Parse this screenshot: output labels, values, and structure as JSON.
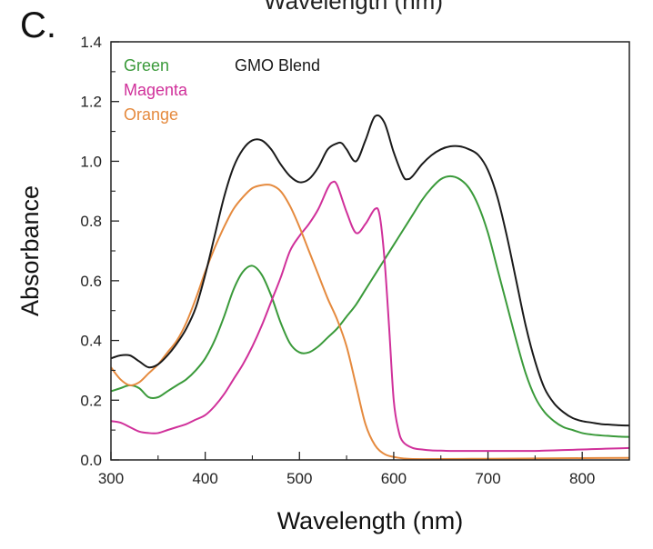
{
  "panel_label": "C.",
  "top_cutoff_text": "Wavelength (nm)",
  "chart_data": {
    "type": "line",
    "xlabel": "Wavelength (nm)",
    "ylabel": "Absorbance",
    "xlim": [
      300,
      850
    ],
    "ylim": [
      0.0,
      1.4
    ],
    "xticks": [
      300,
      400,
      500,
      600,
      700,
      800
    ],
    "xtick_labels": [
      "300",
      "400",
      "500",
      "600",
      "700",
      "800"
    ],
    "yticks": [
      0.0,
      0.2,
      0.4,
      0.6,
      0.8,
      1.0,
      1.2,
      1.4
    ],
    "ytick_labels": [
      "0.0",
      "0.2",
      "0.4",
      "0.6",
      "0.8",
      "1.0",
      "1.2",
      "1.4"
    ],
    "grid": false,
    "legend_position": "top-left",
    "series": [
      {
        "name": "Green",
        "color": "#3a9a3a",
        "x": [
          300,
          310,
          320,
          330,
          340,
          350,
          360,
          370,
          380,
          390,
          400,
          410,
          420,
          430,
          440,
          450,
          460,
          470,
          480,
          490,
          500,
          510,
          520,
          530,
          540,
          550,
          560,
          570,
          580,
          590,
          600,
          610,
          620,
          630,
          640,
          650,
          660,
          670,
          680,
          690,
          700,
          710,
          720,
          730,
          740,
          750,
          760,
          770,
          780,
          790,
          800,
          810,
          820,
          830,
          840,
          850
        ],
        "y": [
          0.23,
          0.24,
          0.25,
          0.24,
          0.21,
          0.21,
          0.23,
          0.25,
          0.27,
          0.3,
          0.34,
          0.4,
          0.48,
          0.57,
          0.63,
          0.65,
          0.62,
          0.55,
          0.46,
          0.39,
          0.36,
          0.36,
          0.38,
          0.41,
          0.44,
          0.48,
          0.52,
          0.57,
          0.62,
          0.67,
          0.72,
          0.77,
          0.82,
          0.87,
          0.91,
          0.94,
          0.95,
          0.94,
          0.91,
          0.85,
          0.76,
          0.64,
          0.52,
          0.4,
          0.29,
          0.21,
          0.16,
          0.13,
          0.11,
          0.1,
          0.09,
          0.085,
          0.082,
          0.08,
          0.078,
          0.077
        ]
      },
      {
        "name": "Magenta",
        "color": "#d0309a",
        "x": [
          300,
          310,
          320,
          330,
          340,
          350,
          360,
          370,
          380,
          390,
          400,
          410,
          420,
          430,
          440,
          450,
          460,
          470,
          480,
          490,
          500,
          510,
          520,
          530,
          535,
          540,
          550,
          560,
          570,
          580,
          585,
          590,
          595,
          600,
          605,
          610,
          620,
          630,
          640,
          650,
          660,
          670,
          680,
          690,
          700,
          710,
          720,
          730,
          740,
          750,
          760,
          770,
          780,
          790,
          800,
          810,
          820,
          830,
          840,
          850
        ],
        "y": [
          0.13,
          0.125,
          0.11,
          0.095,
          0.09,
          0.09,
          0.1,
          0.11,
          0.12,
          0.135,
          0.15,
          0.18,
          0.22,
          0.27,
          0.32,
          0.38,
          0.45,
          0.53,
          0.61,
          0.7,
          0.75,
          0.79,
          0.84,
          0.91,
          0.93,
          0.92,
          0.83,
          0.76,
          0.79,
          0.84,
          0.82,
          0.68,
          0.45,
          0.2,
          0.1,
          0.06,
          0.04,
          0.035,
          0.032,
          0.031,
          0.03,
          0.03,
          0.03,
          0.03,
          0.03,
          0.03,
          0.03,
          0.03,
          0.03,
          0.03,
          0.031,
          0.032,
          0.033,
          0.034,
          0.035,
          0.036,
          0.037,
          0.038,
          0.039,
          0.04
        ]
      },
      {
        "name": "Orange",
        "color": "#e58a3e",
        "x": [
          300,
          310,
          320,
          330,
          340,
          350,
          360,
          370,
          380,
          390,
          400,
          410,
          420,
          430,
          440,
          450,
          460,
          470,
          480,
          490,
          500,
          510,
          520,
          530,
          540,
          550,
          560,
          570,
          580,
          590,
          600,
          610,
          620,
          650,
          700,
          750,
          800,
          850
        ],
        "y": [
          0.31,
          0.27,
          0.25,
          0.26,
          0.29,
          0.32,
          0.36,
          0.4,
          0.46,
          0.54,
          0.63,
          0.71,
          0.78,
          0.84,
          0.88,
          0.91,
          0.92,
          0.92,
          0.9,
          0.85,
          0.78,
          0.7,
          0.62,
          0.54,
          0.47,
          0.38,
          0.25,
          0.12,
          0.05,
          0.02,
          0.01,
          0.005,
          0.003,
          0.003,
          0.004,
          0.005,
          0.006,
          0.007
        ]
      },
      {
        "name": "GMO Blend",
        "color": "#1a1a1a",
        "x": [
          300,
          310,
          320,
          330,
          340,
          350,
          360,
          370,
          380,
          390,
          400,
          410,
          420,
          430,
          440,
          450,
          460,
          470,
          480,
          490,
          500,
          510,
          520,
          530,
          540,
          545,
          550,
          560,
          570,
          580,
          590,
          600,
          610,
          615,
          620,
          630,
          640,
          650,
          660,
          670,
          680,
          690,
          700,
          710,
          720,
          730,
          740,
          750,
          760,
          770,
          780,
          790,
          800,
          810,
          820,
          830,
          840,
          850
        ],
        "y": [
          0.34,
          0.35,
          0.35,
          0.33,
          0.31,
          0.32,
          0.35,
          0.39,
          0.44,
          0.51,
          0.62,
          0.75,
          0.88,
          0.98,
          1.04,
          1.07,
          1.07,
          1.04,
          0.99,
          0.95,
          0.93,
          0.94,
          0.98,
          1.04,
          1.06,
          1.06,
          1.04,
          1.0,
          1.07,
          1.15,
          1.13,
          1.03,
          0.95,
          0.94,
          0.95,
          0.99,
          1.02,
          1.04,
          1.05,
          1.05,
          1.04,
          1.02,
          0.97,
          0.88,
          0.75,
          0.6,
          0.45,
          0.33,
          0.24,
          0.19,
          0.16,
          0.14,
          0.13,
          0.125,
          0.12,
          0.118,
          0.116,
          0.115
        ]
      }
    ]
  }
}
